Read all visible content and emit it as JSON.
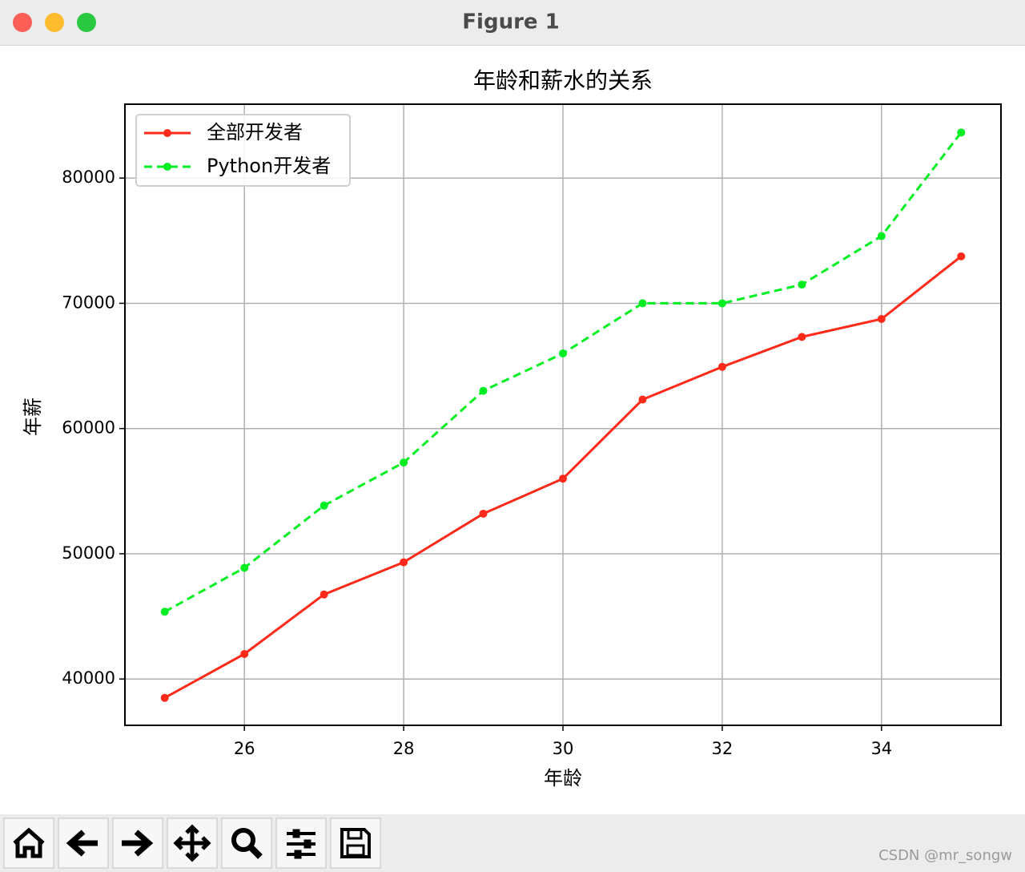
{
  "window": {
    "title": "Figure 1",
    "watermark": "CSDN @mr_songw"
  },
  "chart_data": {
    "type": "line",
    "title": "年龄和薪水的关系",
    "x_label": "年龄",
    "y_label": "年薪",
    "x": [
      25,
      26,
      27,
      28,
      29,
      30,
      31,
      32,
      33,
      34,
      35
    ],
    "series": [
      {
        "name": "全部开发者",
        "color": "#ff2a1a",
        "linestyle": "solid",
        "values": [
          38496,
          42000,
          46752,
          49320,
          53200,
          56000,
          62316,
          64928,
          67317,
          68748,
          73752
        ]
      },
      {
        "name": "Python开发者",
        "color": "#00ee22",
        "linestyle": "dashed",
        "values": [
          45372,
          48876,
          53850,
          57287,
          63016,
          65998,
          70003,
          70000,
          71496,
          75370,
          83640
        ]
      }
    ],
    "xlim": [
      24.5,
      35.5
    ],
    "xticks": [
      26,
      28,
      30,
      32,
      34
    ],
    "ylim": [
      36300,
      85900
    ],
    "yticks": [
      40000,
      50000,
      60000,
      70000,
      80000
    ],
    "grid": true,
    "legend": "upper left"
  }
}
